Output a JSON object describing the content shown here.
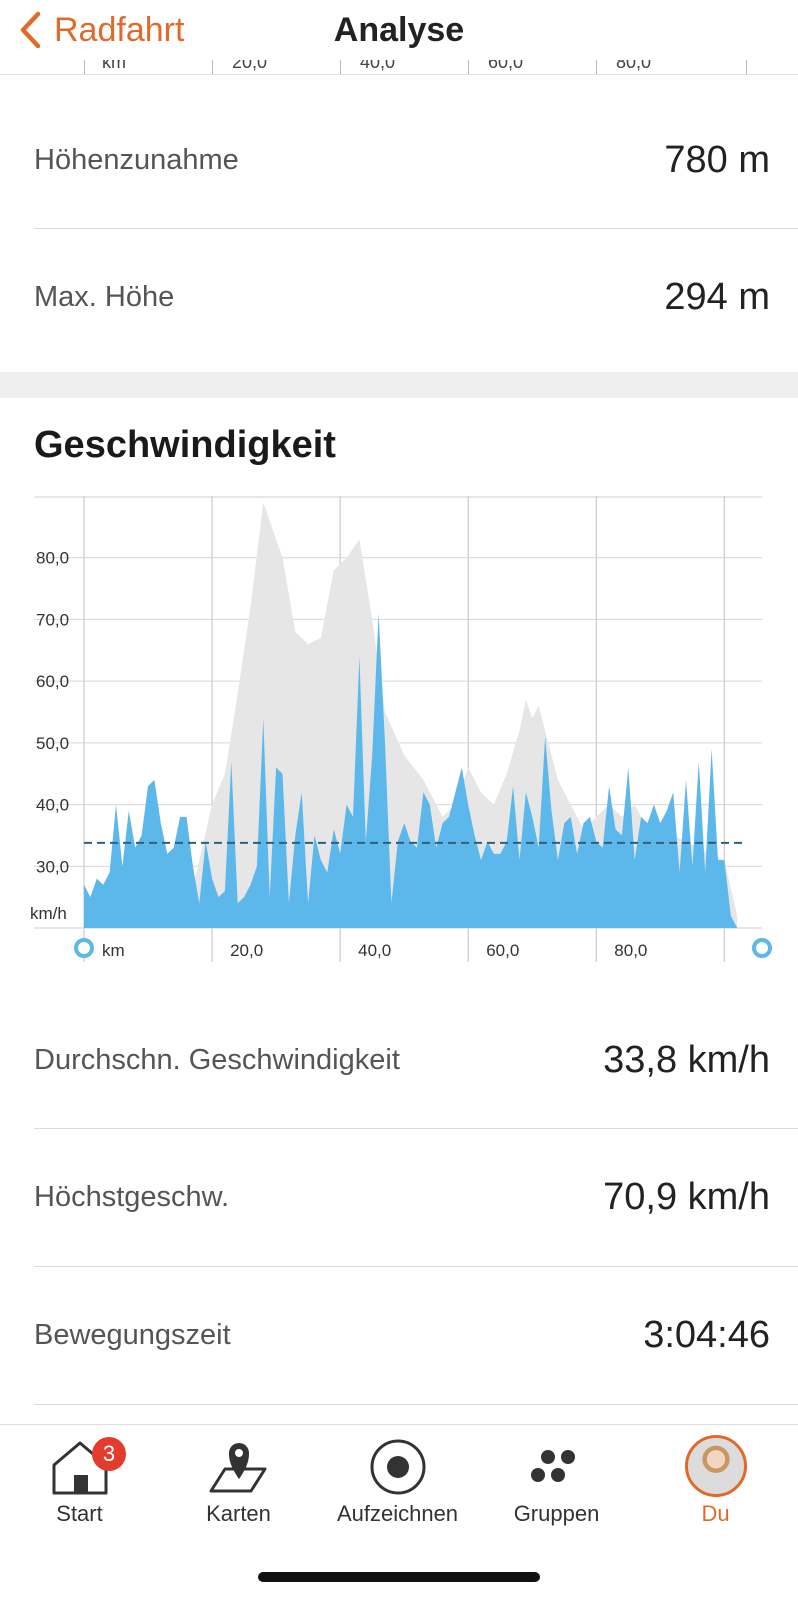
{
  "header": {
    "back_label": "Radfahrt",
    "title": "Analyse"
  },
  "peek_axis": [
    "km",
    "20,0",
    "40,0",
    "60,0",
    "80,0"
  ],
  "elevation_stats": [
    {
      "label": "Höhenzunahme",
      "value": "780 m"
    },
    {
      "label": "Max. Höhe",
      "value": "294 m"
    }
  ],
  "speed_section": {
    "title": "Geschwindigkeit"
  },
  "chart_data": {
    "type": "area",
    "ylabel": "km/h",
    "xlabel": "km",
    "y_ticks": [
      "30,0",
      "40,0",
      "50,0",
      "60,0",
      "70,0",
      "80,0"
    ],
    "x_ticks": [
      "20,0",
      "40,0",
      "60,0",
      "80,0"
    ],
    "xlim": [
      0,
      104
    ],
    "ylim": [
      20,
      90
    ],
    "average": 33.8,
    "colors": {
      "speed": "#5cb8ea",
      "elevation": "#e6e6e6",
      "average": "#2f5f7a"
    },
    "series": [
      {
        "values": [
          [
            0,
            27
          ],
          [
            1,
            25
          ],
          [
            2,
            28
          ],
          [
            3,
            27
          ],
          [
            4,
            29
          ],
          [
            5,
            40
          ],
          [
            6,
            30
          ],
          [
            7,
            39
          ],
          [
            8,
            33
          ],
          [
            9,
            35
          ],
          [
            10,
            43
          ],
          [
            11,
            44
          ],
          [
            12,
            37
          ],
          [
            13,
            32
          ],
          [
            14,
            33
          ],
          [
            15,
            38
          ],
          [
            16,
            38
          ],
          [
            17,
            30
          ],
          [
            18,
            24
          ],
          [
            19,
            34
          ],
          [
            20,
            28
          ],
          [
            21,
            25
          ],
          [
            22,
            26
          ],
          [
            23,
            47
          ],
          [
            24,
            24
          ],
          [
            25,
            25
          ],
          [
            26,
            27
          ],
          [
            27,
            30
          ],
          [
            28,
            54
          ],
          [
            29,
            25
          ],
          [
            30,
            46
          ],
          [
            31,
            45
          ],
          [
            32,
            24
          ],
          [
            33,
            35
          ],
          [
            34,
            42
          ],
          [
            35,
            24
          ],
          [
            36,
            35
          ],
          [
            37,
            31
          ],
          [
            38,
            29
          ],
          [
            39,
            36
          ],
          [
            40,
            32
          ],
          [
            41,
            40
          ],
          [
            42,
            38
          ],
          [
            43,
            64
          ],
          [
            44,
            34
          ],
          [
            45,
            48
          ],
          [
            46,
            71
          ],
          [
            47,
            50
          ],
          [
            48,
            24
          ],
          [
            49,
            34
          ],
          [
            50,
            37
          ],
          [
            51,
            34
          ],
          [
            52,
            33
          ],
          [
            53,
            42
          ],
          [
            54,
            40
          ],
          [
            55,
            33
          ],
          [
            56,
            37
          ],
          [
            57,
            38
          ],
          [
            58,
            42
          ],
          [
            59,
            46
          ],
          [
            60,
            40
          ],
          [
            61,
            35
          ],
          [
            62,
            31
          ],
          [
            63,
            34
          ],
          [
            64,
            32
          ],
          [
            65,
            32
          ],
          [
            66,
            34
          ],
          [
            67,
            43
          ],
          [
            68,
            31
          ],
          [
            69,
            42
          ],
          [
            70,
            38
          ],
          [
            71,
            33
          ],
          [
            72,
            51
          ],
          [
            73,
            39
          ],
          [
            74,
            31
          ],
          [
            75,
            37
          ],
          [
            76,
            38
          ],
          [
            77,
            32
          ],
          [
            78,
            37
          ],
          [
            79,
            38
          ],
          [
            80,
            34
          ],
          [
            81,
            33
          ],
          [
            82,
            43
          ],
          [
            83,
            36
          ],
          [
            84,
            35
          ],
          [
            85,
            46
          ],
          [
            86,
            31
          ],
          [
            87,
            38
          ],
          [
            88,
            37
          ],
          [
            89,
            40
          ],
          [
            90,
            37
          ],
          [
            91,
            39
          ],
          [
            92,
            42
          ],
          [
            93,
            29
          ],
          [
            94,
            44
          ],
          [
            95,
            30
          ],
          [
            96,
            47
          ],
          [
            97,
            29
          ],
          [
            98,
            49
          ],
          [
            99,
            31
          ],
          [
            100,
            31
          ],
          [
            101,
            22
          ],
          [
            102,
            20
          ]
        ]
      }
    ]
  },
  "speed_stats": [
    {
      "label": "Durchschn. Geschwindigkeit",
      "value": "33,8 km/h"
    },
    {
      "label": "Höchstgeschw.",
      "value": "70,9 km/h"
    },
    {
      "label": "Bewegungszeit",
      "value": "3:04:46"
    }
  ],
  "tabbar": {
    "badge": "3",
    "items": [
      {
        "label": "Start",
        "icon": "home-icon"
      },
      {
        "label": "Karten",
        "icon": "map-icon"
      },
      {
        "label": "Aufzeichnen",
        "icon": "record-icon"
      },
      {
        "label": "Gruppen",
        "icon": "groups-icon"
      },
      {
        "label": "Du",
        "icon": "avatar"
      }
    ]
  }
}
